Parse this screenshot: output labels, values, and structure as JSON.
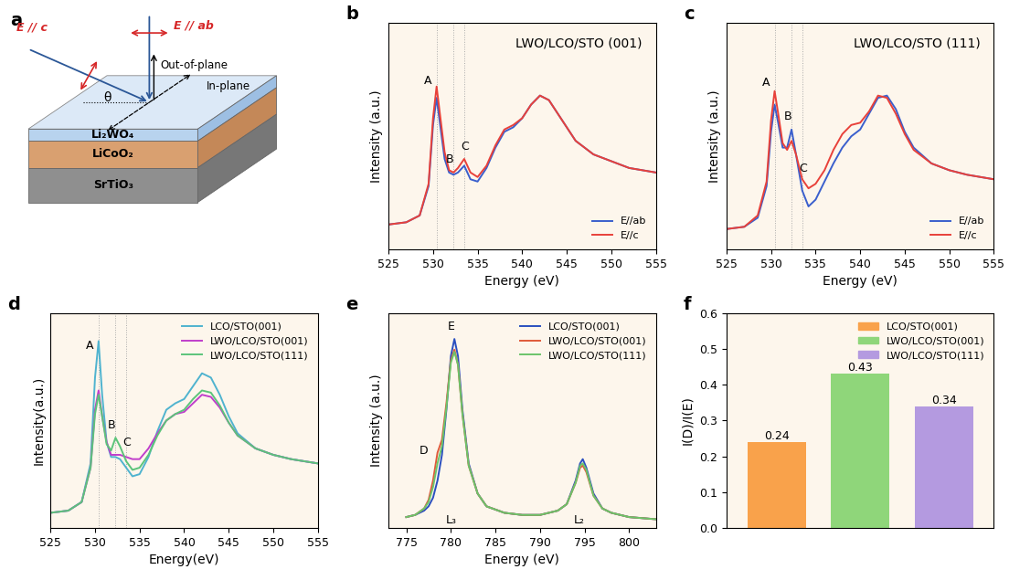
{
  "diagram": {
    "title": "a",
    "layers": [
      "Li₂WO₄",
      "LiCoO₂",
      "SrTiO₃"
    ],
    "beams": [
      "E // c",
      "E // ab"
    ],
    "directions": [
      "Out-of-plane",
      "In-plane"
    ],
    "angle": "θ"
  },
  "chart_data": [
    {
      "type": "line",
      "title": "b",
      "subtitle": "LWO/LCO/STO (001)",
      "x_label": "Energy (eV)",
      "y_label": "Intensity (a.u.)",
      "x": [
        525,
        527,
        528.5,
        529.5,
        530,
        530.4,
        530.8,
        531.3,
        531.8,
        532.3,
        532.8,
        533.5,
        534.2,
        535,
        536,
        537,
        538,
        539,
        540,
        541,
        542,
        543,
        544,
        545,
        546,
        548,
        550,
        552,
        555
      ],
      "series": [
        {
          "name": "E//ab",
          "color": "#3a5fcd",
          "values": [
            0.11,
            0.12,
            0.15,
            0.28,
            0.55,
            0.67,
            0.55,
            0.4,
            0.34,
            0.33,
            0.34,
            0.37,
            0.31,
            0.3,
            0.36,
            0.45,
            0.52,
            0.54,
            0.58,
            0.64,
            0.68,
            0.66,
            0.6,
            0.54,
            0.48,
            0.42,
            0.39,
            0.36,
            0.34
          ]
        },
        {
          "name": "E//c",
          "color": "#e8413a",
          "values": [
            0.11,
            0.12,
            0.15,
            0.29,
            0.58,
            0.72,
            0.59,
            0.43,
            0.35,
            0.34,
            0.36,
            0.4,
            0.34,
            0.32,
            0.37,
            0.46,
            0.53,
            0.55,
            0.58,
            0.64,
            0.68,
            0.66,
            0.6,
            0.54,
            0.48,
            0.42,
            0.39,
            0.36,
            0.34
          ]
        }
      ],
      "annotations": [
        {
          "text": "A",
          "x": 529.4,
          "y": 0.72
        },
        {
          "text": "B",
          "x": 531.9,
          "y": 0.37
        },
        {
          "text": "C",
          "x": 533.6,
          "y": 0.43
        }
      ],
      "vlines": [
        530.4,
        532.3,
        533.5
      ],
      "xlim": [
        525,
        555
      ],
      "xticks": [
        525,
        530,
        535,
        540,
        545,
        550,
        555
      ],
      "ylim": [
        0,
        1
      ],
      "tick_labels": "x",
      "legend": "lower right"
    },
    {
      "type": "line",
      "title": "c",
      "subtitle": "LWO/LCO/STO (111)",
      "x_label": "Energy (eV)",
      "y_label": "Intensity (a.u.)",
      "x": [
        525,
        527,
        528.5,
        529.5,
        530,
        530.4,
        530.8,
        531.3,
        531.8,
        532.3,
        532.8,
        533.5,
        534.2,
        535,
        536,
        537,
        538,
        539,
        540,
        541,
        542,
        543,
        544,
        545,
        546,
        548,
        550,
        552,
        555
      ],
      "series": [
        {
          "name": "E//ab",
          "color": "#3a5fcd",
          "values": [
            0.09,
            0.1,
            0.14,
            0.28,
            0.52,
            0.64,
            0.56,
            0.45,
            0.45,
            0.53,
            0.42,
            0.26,
            0.19,
            0.22,
            0.3,
            0.38,
            0.45,
            0.5,
            0.53,
            0.6,
            0.67,
            0.68,
            0.62,
            0.52,
            0.45,
            0.38,
            0.35,
            0.33,
            0.31
          ]
        },
        {
          "name": "E//c",
          "color": "#e8413a",
          "values": [
            0.09,
            0.1,
            0.15,
            0.3,
            0.57,
            0.7,
            0.6,
            0.47,
            0.44,
            0.48,
            0.42,
            0.31,
            0.27,
            0.29,
            0.35,
            0.44,
            0.51,
            0.55,
            0.56,
            0.61,
            0.68,
            0.67,
            0.6,
            0.51,
            0.44,
            0.38,
            0.35,
            0.33,
            0.31
          ]
        }
      ],
      "annotations": [
        {
          "text": "A",
          "x": 529.4,
          "y": 0.71
        },
        {
          "text": "B",
          "x": 531.9,
          "y": 0.56
        },
        {
          "text": "C",
          "x": 533.6,
          "y": 0.33
        }
      ],
      "vlines": [
        530.4,
        532.3,
        533.5
      ],
      "xlim": [
        525,
        555
      ],
      "xticks": [
        525,
        530,
        535,
        540,
        545,
        550,
        555
      ],
      "ylim": [
        0,
        1
      ],
      "tick_labels": "x",
      "legend": "lower right"
    },
    {
      "type": "line",
      "title": "d",
      "x_label": "Energy(eV)",
      "y_label": "Intensity(a.u.)",
      "x": [
        525,
        527,
        528.5,
        529.5,
        530,
        530.4,
        530.8,
        531.3,
        531.8,
        532.3,
        532.8,
        533.5,
        534.2,
        535,
        536,
        537,
        538,
        539,
        540,
        541,
        542,
        543,
        544,
        545,
        546,
        548,
        550,
        552,
        555
      ],
      "series": [
        {
          "name": "LCO/STO(001)",
          "color": "#4fb3cf",
          "values": [
            0.07,
            0.08,
            0.12,
            0.3,
            0.7,
            0.87,
            0.62,
            0.4,
            0.33,
            0.33,
            0.32,
            0.28,
            0.24,
            0.25,
            0.33,
            0.45,
            0.55,
            0.58,
            0.6,
            0.66,
            0.72,
            0.7,
            0.62,
            0.52,
            0.44,
            0.37,
            0.34,
            0.32,
            0.3
          ]
        },
        {
          "name": "LWO/LCO/STO(001)",
          "color": "#c03ecb",
          "values": [
            0.07,
            0.08,
            0.12,
            0.28,
            0.55,
            0.64,
            0.52,
            0.4,
            0.34,
            0.34,
            0.34,
            0.33,
            0.32,
            0.32,
            0.37,
            0.44,
            0.5,
            0.53,
            0.54,
            0.58,
            0.62,
            0.61,
            0.56,
            0.49,
            0.43,
            0.37,
            0.34,
            0.32,
            0.3
          ]
        },
        {
          "name": "LWO/LCO/STO(111)",
          "color": "#5cc47a",
          "values": [
            0.07,
            0.08,
            0.12,
            0.28,
            0.53,
            0.62,
            0.52,
            0.39,
            0.36,
            0.42,
            0.38,
            0.31,
            0.27,
            0.28,
            0.34,
            0.43,
            0.5,
            0.53,
            0.55,
            0.6,
            0.64,
            0.63,
            0.57,
            0.49,
            0.43,
            0.37,
            0.34,
            0.32,
            0.3
          ]
        }
      ],
      "annotations": [
        {
          "text": "A",
          "x": 529.4,
          "y": 0.82
        },
        {
          "text": "B",
          "x": 531.9,
          "y": 0.45
        },
        {
          "text": "C",
          "x": 533.6,
          "y": 0.37
        }
      ],
      "vlines": [
        530.4,
        532.3,
        533.5
      ],
      "xlim": [
        525,
        555
      ],
      "xticks": [
        525,
        530,
        535,
        540,
        545,
        550,
        555
      ],
      "ylim": [
        0,
        1
      ],
      "tick_labels": "x",
      "legend": "upper right"
    },
    {
      "type": "line",
      "title": "e",
      "x_label": "Energy (eV)",
      "y_label": "Intensity (a.u.)",
      "x": [
        775,
        776,
        777,
        777.5,
        778,
        778.5,
        779,
        779.5,
        780,
        780.4,
        780.8,
        781.3,
        782,
        783,
        784,
        786,
        788,
        790,
        792,
        793,
        794,
        794.5,
        794.8,
        795.2,
        796,
        797,
        798,
        800,
        803
      ],
      "series": [
        {
          "name": "LCO/STO(001)",
          "color": "#2a4fbf",
          "values": [
            0.05,
            0.06,
            0.08,
            0.1,
            0.14,
            0.22,
            0.34,
            0.55,
            0.8,
            0.88,
            0.8,
            0.55,
            0.3,
            0.16,
            0.1,
            0.07,
            0.06,
            0.06,
            0.08,
            0.11,
            0.22,
            0.3,
            0.32,
            0.28,
            0.16,
            0.09,
            0.07,
            0.05,
            0.04
          ]
        },
        {
          "name": "LWO/LCO/STO(001)",
          "color": "#e05a3a",
          "values": [
            0.05,
            0.06,
            0.09,
            0.13,
            0.22,
            0.35,
            0.41,
            0.58,
            0.78,
            0.83,
            0.76,
            0.53,
            0.29,
            0.16,
            0.1,
            0.07,
            0.06,
            0.06,
            0.08,
            0.11,
            0.21,
            0.28,
            0.29,
            0.26,
            0.15,
            0.09,
            0.07,
            0.05,
            0.04
          ]
        },
        {
          "name": "LWO/LCO/STO(111)",
          "color": "#6cc46a",
          "values": [
            0.05,
            0.06,
            0.09,
            0.12,
            0.19,
            0.3,
            0.38,
            0.56,
            0.77,
            0.82,
            0.76,
            0.53,
            0.29,
            0.16,
            0.1,
            0.07,
            0.06,
            0.06,
            0.08,
            0.11,
            0.21,
            0.29,
            0.3,
            0.27,
            0.15,
            0.09,
            0.07,
            0.05,
            0.04
          ]
        }
      ],
      "annotations": [
        {
          "text": "E",
          "x": 780.0,
          "y": 0.91
        },
        {
          "text": "D",
          "x": 777.0,
          "y": 0.33
        },
        {
          "text": "L₃",
          "x": 780.0,
          "y": 0.01
        },
        {
          "text": "L₂",
          "x": 794.4,
          "y": 0.01
        }
      ],
      "xlim": [
        773,
        803
      ],
      "xticks": [
        775,
        780,
        785,
        790,
        795,
        800
      ],
      "ylim": [
        0,
        1
      ],
      "tick_labels": "x",
      "legend": "upper right"
    },
    {
      "type": "bar",
      "title": "f",
      "y_label": "I(D)/I(E)",
      "categories": [
        null,
        null,
        null
      ],
      "series": [
        {
          "name": "LCO/STO(001)",
          "color": "#f9a24b",
          "values": [
            0.24,
            null,
            null
          ]
        },
        {
          "name": "LWO/LCO/STO(001)",
          "color": "#8fd67a",
          "values": [
            null,
            0.43,
            null
          ]
        },
        {
          "name": "LWO/LCO/STO(111)",
          "color": "#b49ae0",
          "values": [
            null,
            null,
            0.34
          ]
        }
      ],
      "ylim": [
        0,
        0.6
      ],
      "yticks": [
        0.0,
        0.1,
        0.2,
        0.3,
        0.4,
        0.5,
        0.6
      ],
      "data_labels": true,
      "tick_labels": "y",
      "legend": "upper right"
    }
  ]
}
